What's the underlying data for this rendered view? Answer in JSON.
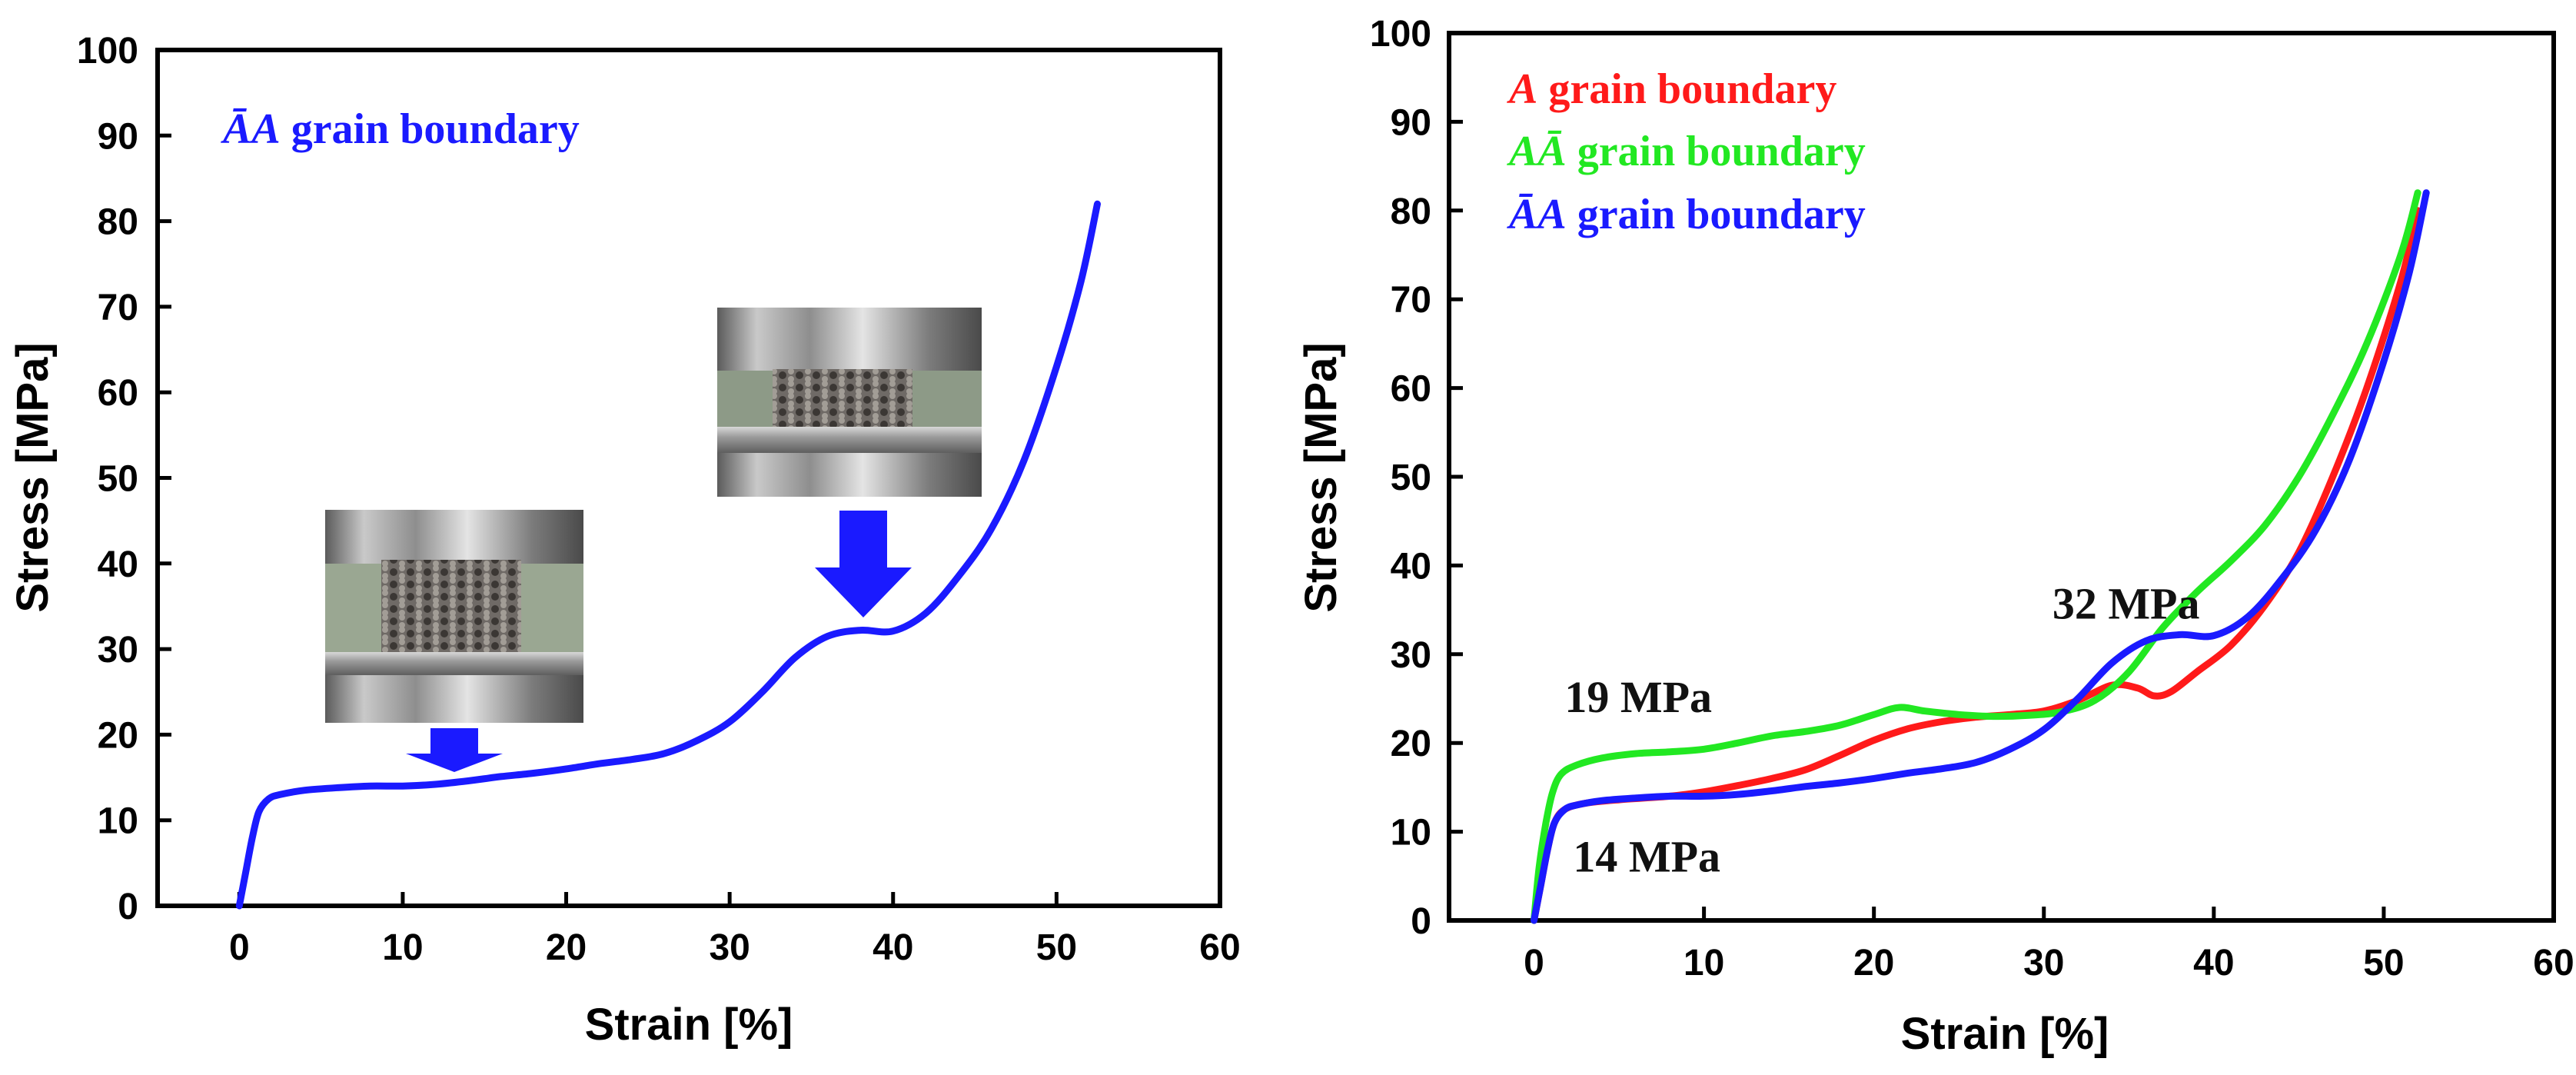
{
  "colors": {
    "red": "#ff1a1a",
    "green": "#22e822",
    "blue": "#1a1aff",
    "arrow": "#1a1aff"
  },
  "chart_data": [
    {
      "id": "left",
      "type": "line",
      "xlabel": "Strain [%]",
      "ylabel": "Stress [MPa]",
      "xlim": [
        -5,
        60
      ],
      "ylim": [
        0,
        100
      ],
      "xticks": [
        0,
        10,
        20,
        30,
        40,
        50,
        60
      ],
      "yticks": [
        0,
        10,
        20,
        30,
        40,
        50,
        60,
        70,
        80,
        90,
        100
      ],
      "xtick_labels": [
        "0",
        "10",
        "20",
        "30",
        "40",
        "50",
        "60"
      ],
      "ytick_labels": [
        "0",
        "10",
        "20",
        "30",
        "40",
        "50",
        "60",
        "70",
        "80",
        "90",
        "100"
      ],
      "legend": [
        {
          "name": "ĀA grain boundary",
          "prefix": "ĀA",
          "suffix": " grain boundary",
          "color": "blue"
        }
      ],
      "series": [
        {
          "name": "ĀA grain boundary",
          "color": "blue",
          "x": [
            0,
            0.4,
            0.8,
            1.2,
            1.8,
            2.5,
            4,
            6,
            8,
            10,
            12,
            14,
            16,
            18,
            20,
            22,
            24,
            26,
            28,
            30,
            32,
            34,
            36,
            38,
            40,
            42,
            44,
            46,
            48,
            50,
            51.5,
            52.5
          ],
          "y": [
            0,
            4,
            8,
            11,
            12.5,
            13,
            13.5,
            13.8,
            14,
            14,
            14.2,
            14.6,
            15.1,
            15.5,
            16,
            16.6,
            17.1,
            17.8,
            19.3,
            21.5,
            25,
            29,
            31.5,
            32.2,
            32.1,
            34.2,
            38.5,
            44,
            52,
            63,
            73,
            82
          ]
        }
      ],
      "annotations": [
        {
          "type": "photo",
          "label": "specimen-photo-early",
          "points_to": [
            13.5,
            14
          ]
        },
        {
          "type": "photo",
          "label": "specimen-photo-late",
          "points_to": [
            38,
            32
          ]
        }
      ]
    },
    {
      "id": "right",
      "type": "line",
      "xlabel": "Strain [%]",
      "ylabel": "Stress [MPa]",
      "xlim": [
        -5,
        60
      ],
      "ylim": [
        0,
        100
      ],
      "xticks": [
        0,
        10,
        20,
        30,
        40,
        50,
        60
      ],
      "yticks": [
        0,
        10,
        20,
        30,
        40,
        50,
        60,
        70,
        80,
        90,
        100
      ],
      "xtick_labels": [
        "0",
        "10",
        "20",
        "30",
        "40",
        "50",
        "60"
      ],
      "ytick_labels": [
        "0",
        "10",
        "20",
        "30",
        "40",
        "50",
        "60",
        "70",
        "80",
        "90",
        "100"
      ],
      "legend": [
        {
          "name": "A grain boundary",
          "prefix": "A",
          "suffix": " grain boundary",
          "color": "red"
        },
        {
          "name": "AĀ grain boundary",
          "prefix": "AĀ",
          "suffix": " grain boundary",
          "color": "green"
        },
        {
          "name": "ĀA grain boundary",
          "prefix": "ĀA",
          "suffix": " grain boundary",
          "color": "blue"
        }
      ],
      "series": [
        {
          "name": "A grain boundary",
          "color": "red",
          "x": [
            0,
            0.4,
            0.8,
            1.2,
            1.8,
            3,
            5,
            8,
            10,
            12,
            14,
            16,
            18,
            20,
            22,
            24,
            26,
            28,
            30,
            32,
            34,
            35.5,
            36.5,
            37.5,
            39,
            41,
            43,
            45,
            47,
            49,
            51,
            52
          ],
          "y": [
            0,
            4,
            8,
            11,
            12.5,
            13.2,
            13.6,
            14,
            14.5,
            15.2,
            16,
            17,
            18.6,
            20.3,
            21.6,
            22.4,
            22.9,
            23.2,
            23.6,
            24.8,
            26.5,
            26.2,
            25.3,
            25.8,
            28,
            31,
            35.5,
            41.5,
            50,
            60,
            72,
            80
          ]
        },
        {
          "name": "AĀ grain boundary",
          "color": "green",
          "x": [
            0,
            0.3,
            0.7,
            1.1,
            1.6,
            2.5,
            4,
            6,
            8,
            10,
            12,
            14,
            16,
            18,
            20,
            21.5,
            23,
            25,
            27,
            29,
            31,
            33,
            35,
            37,
            39,
            41,
            43,
            45,
            47,
            49,
            51,
            52
          ],
          "y": [
            0,
            6,
            11,
            14.5,
            16.5,
            17.5,
            18.3,
            18.8,
            19,
            19.3,
            20,
            20.8,
            21.3,
            22,
            23.2,
            24,
            23.6,
            23.2,
            23,
            23.1,
            23.5,
            24.8,
            28,
            33,
            37,
            40.5,
            44.5,
            50,
            57,
            65,
            75,
            82
          ]
        },
        {
          "name": "ĀA grain boundary",
          "color": "blue",
          "x": [
            0,
            0.4,
            0.8,
            1.2,
            1.8,
            2.5,
            4,
            6,
            8,
            10,
            12,
            14,
            16,
            18,
            20,
            22,
            24,
            26,
            28,
            30,
            32,
            34,
            36,
            38,
            40,
            42,
            44,
            46,
            48,
            50,
            51.5,
            52.5
          ],
          "y": [
            0,
            4,
            8,
            11,
            12.5,
            13,
            13.5,
            13.8,
            14,
            14,
            14.2,
            14.6,
            15.1,
            15.5,
            16,
            16.6,
            17.1,
            17.8,
            19.3,
            21.5,
            25,
            29,
            31.5,
            32.2,
            32.1,
            34.2,
            38.5,
            44,
            52,
            63,
            73,
            82
          ]
        }
      ],
      "text_annotations": [
        {
          "text": "19 MPa",
          "x": 1.8,
          "y": 23.5
        },
        {
          "text": "14 MPa",
          "x": 2.3,
          "y": 5.5
        },
        {
          "text": "32 MPa",
          "x": 30.5,
          "y": 34
        }
      ]
    }
  ]
}
